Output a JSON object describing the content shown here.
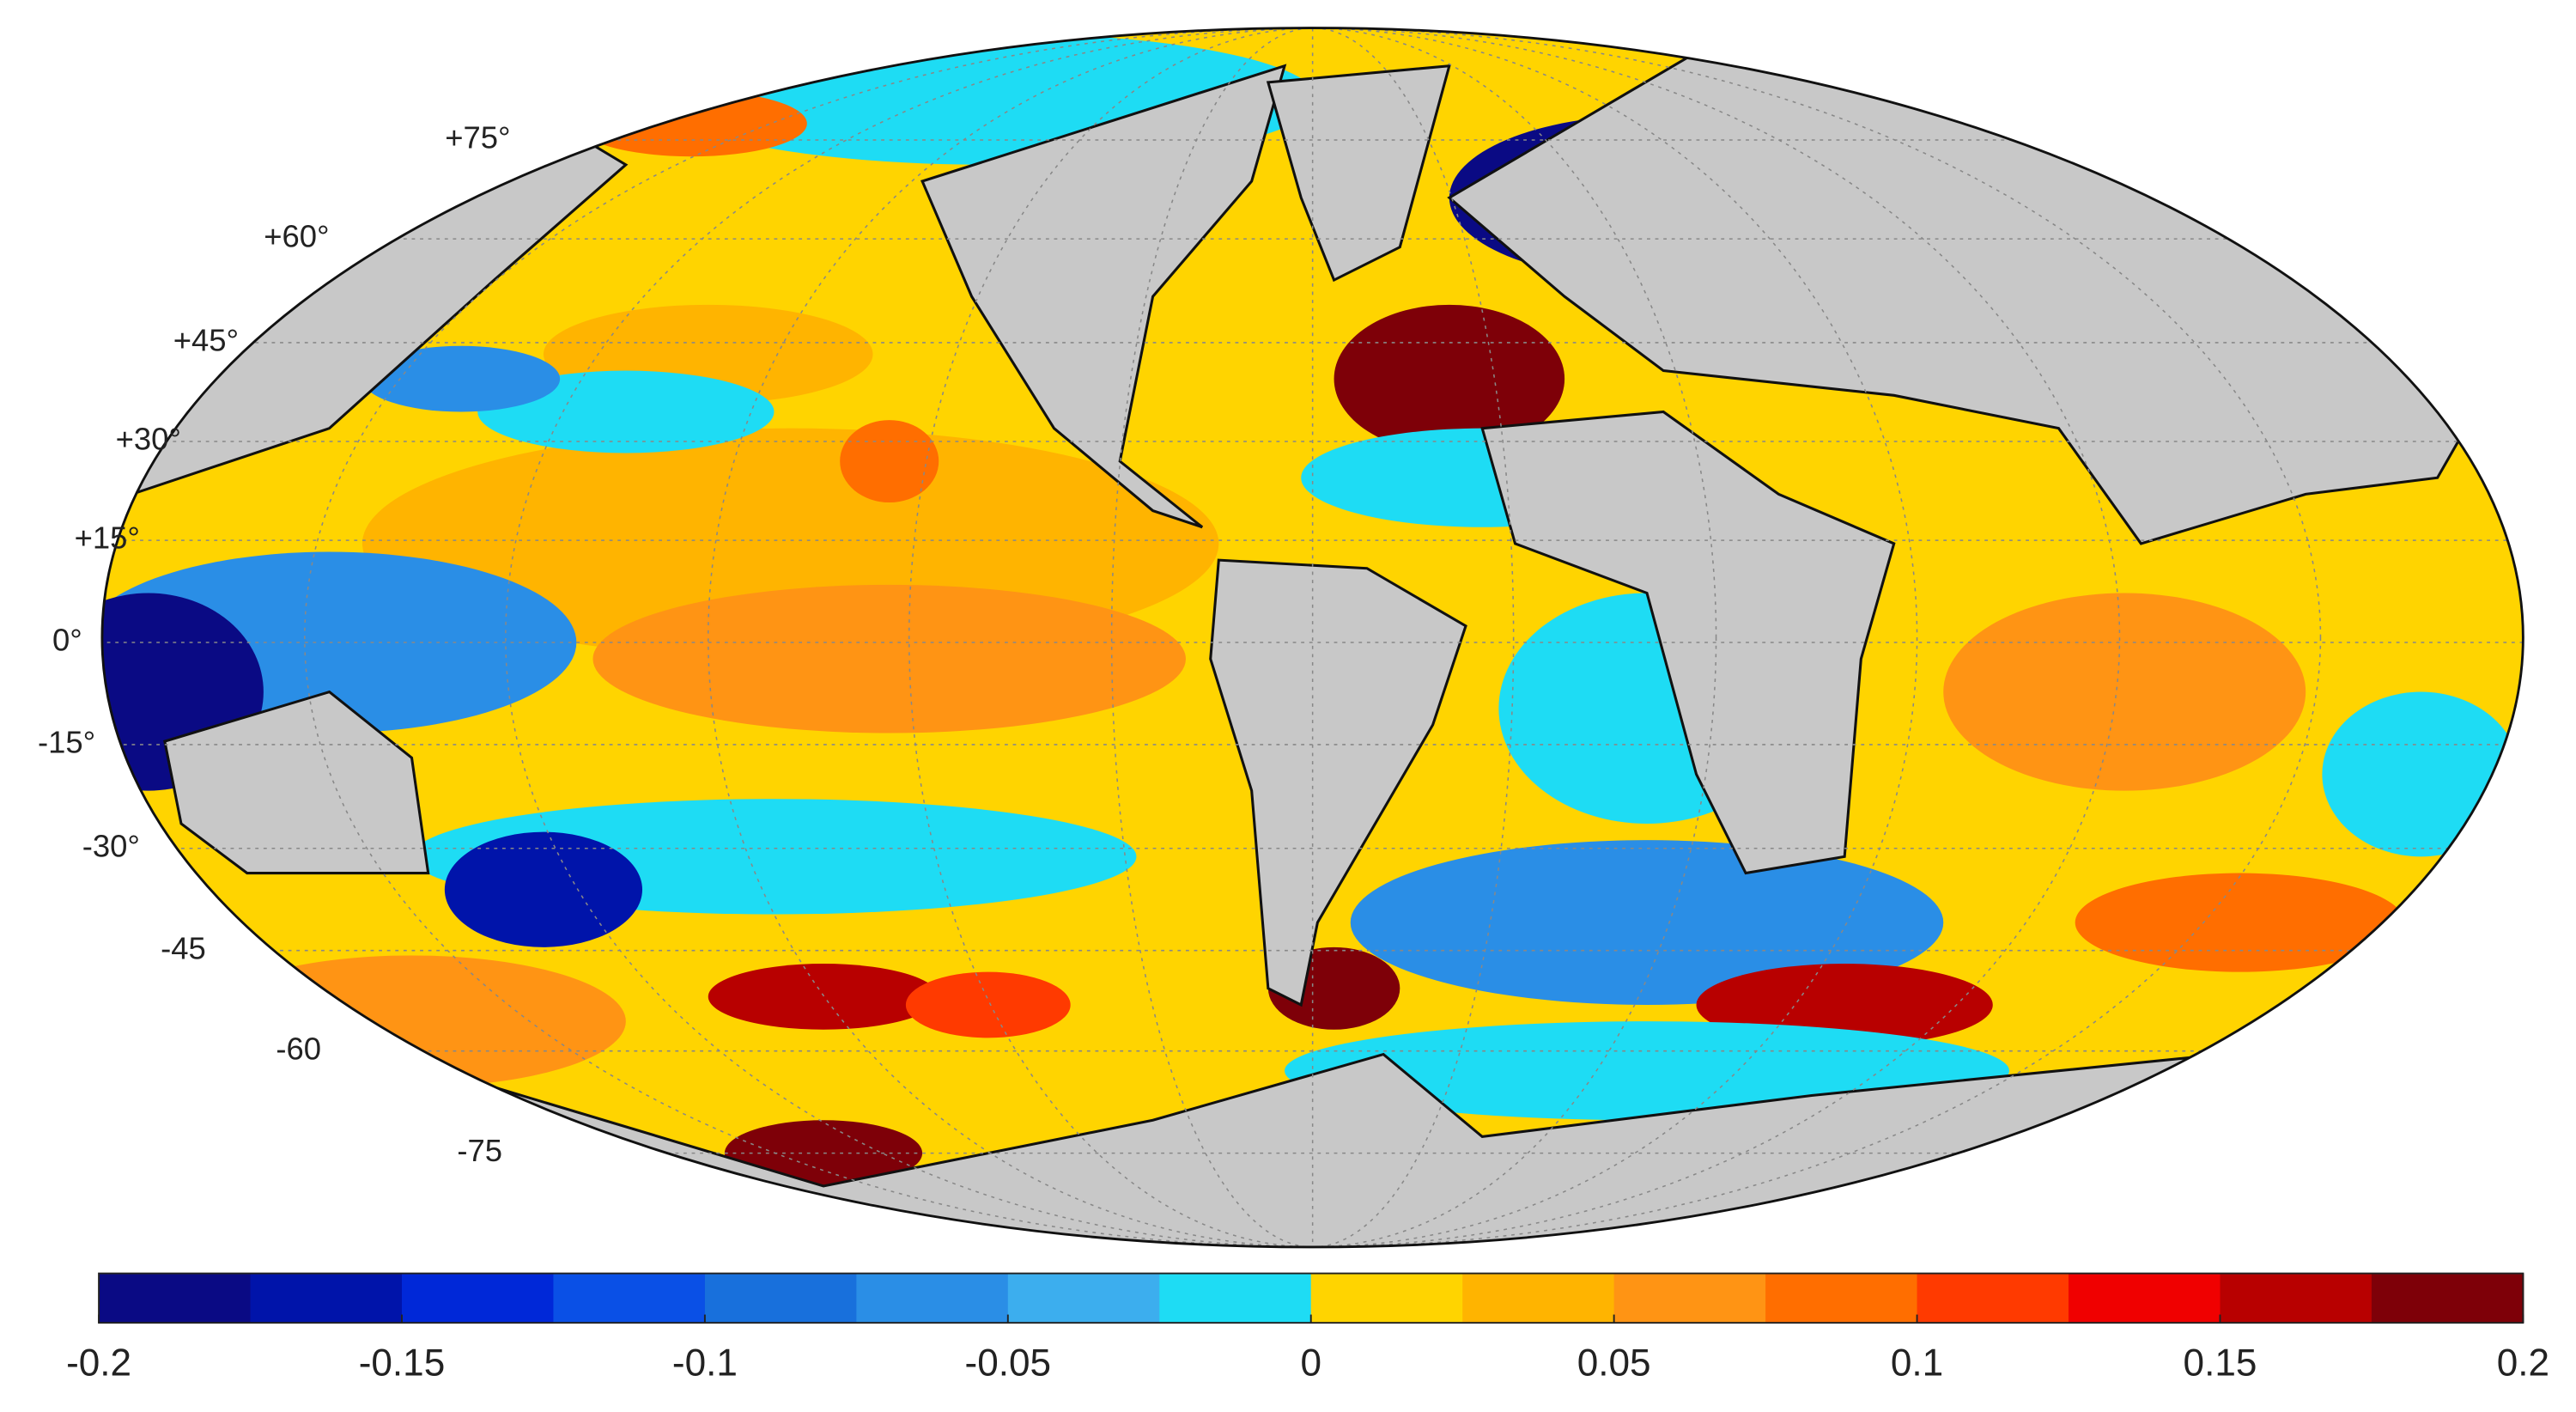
{
  "map": {
    "lat_labels": [
      "+75°",
      "+60°",
      "+45°",
      "+30°",
      "+15°",
      "0°",
      "-15°",
      "-30°",
      "-45",
      "-60",
      "-75"
    ],
    "colorbar": {
      "clim": [
        -0.2,
        0.2
      ],
      "ticks": [
        -0.2,
        -0.15,
        -0.1,
        -0.05,
        0,
        0.05,
        0.1,
        0.15,
        0.2
      ],
      "colors": [
        "#0a0a84",
        "#0014aa",
        "#0028d8",
        "#0a50e6",
        "#1870dc",
        "#2a8ee6",
        "#3caeee",
        "#1edcf4",
        "#ffd400",
        "#ffb400",
        "#ff9414",
        "#ff6e00",
        "#ff3a00",
        "#f00000",
        "#b80000",
        "#7e0008"
      ]
    }
  }
}
